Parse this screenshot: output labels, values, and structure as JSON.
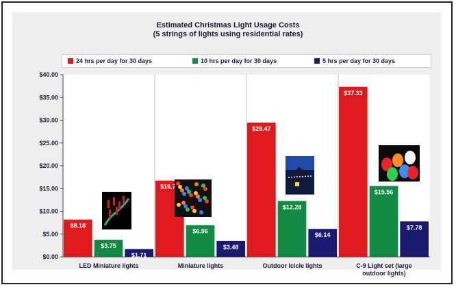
{
  "chart_data": {
    "type": "bar",
    "title": "Estimated Christmas Light Usage Costs",
    "subtitle": "(5 strings of lights using residential rates)",
    "categories": [
      "LED Miniature lights",
      "Miniature lights",
      "Outdoor Icicle lights",
      "C-9 Light set (large outdoor lights)"
    ],
    "series": [
      {
        "name": "24 hrs per day for 30 days",
        "color": "#e0191c",
        "values": [
          8.18,
          16.75,
          29.47,
          37.33
        ],
        "labels": [
          "$8.18",
          "$16.75",
          "$29.47",
          "$37.33"
        ]
      },
      {
        "name": "10 hrs per day for 30 days",
        "color": "#138a44",
        "values": [
          3.75,
          6.96,
          12.28,
          15.56
        ],
        "labels": [
          "$3.75",
          "$6.96",
          "$12.28",
          "$15.56"
        ]
      },
      {
        "name": "5 hrs per day for 30 days",
        "color": "#1b1a6e",
        "values": [
          1.71,
          3.48,
          6.14,
          7.78
        ],
        "labels": [
          "$1.71",
          "$3.48",
          "$6.14",
          "$7.78"
        ]
      }
    ],
    "ylim": [
      0,
      40
    ],
    "yticks": [
      0,
      5,
      10,
      15,
      20,
      25,
      30,
      35,
      40
    ],
    "ytick_labels": [
      "$0.00",
      "$5.00",
      "$10.00",
      "$15.00",
      "$20.00",
      "$25.00",
      "$30.00",
      "$35.00",
      "$40.00"
    ],
    "xlabel": "",
    "ylabel": "",
    "legend_position": "top",
    "grid": false
  },
  "images": [
    {
      "name": "led-miniature-lights-photo",
      "category": 0
    },
    {
      "name": "miniature-lights-photo",
      "category": 1
    },
    {
      "name": "outdoor-icicle-lights-photo",
      "category": 2
    },
    {
      "name": "c9-light-set-photo",
      "category": 3
    }
  ]
}
